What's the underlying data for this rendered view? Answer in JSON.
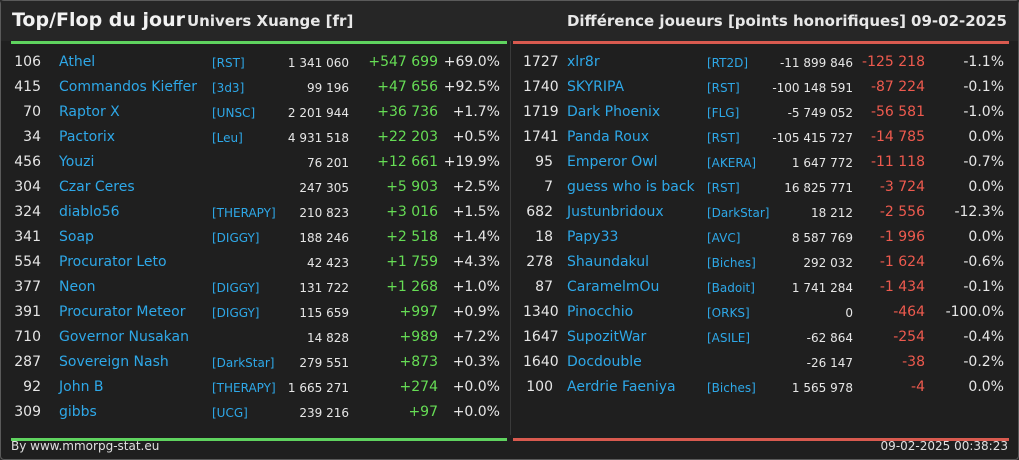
{
  "header": {
    "title": "Top/Flop du jour",
    "universe": "Univers Xuange [fr]",
    "metric": "Différence joueurs [points honorifiques]",
    "date": "09-02-2025"
  },
  "colors": {
    "positive": "#66dd55",
    "negative": "#ee5a4e",
    "name": "#2ea8e8",
    "top_bar": "#5fd35f",
    "flop_bar": "#d95a4f"
  },
  "top": [
    {
      "rank": "106",
      "name": "Athel",
      "tag": "[RST]",
      "score": "1 341 060",
      "diff": "+547 699",
      "pct": "+69.0%"
    },
    {
      "rank": "415",
      "name": "Commandos Kieffer",
      "tag": "[3d3]",
      "score": "99 196",
      "diff": "+47 656",
      "pct": "+92.5%"
    },
    {
      "rank": "70",
      "name": "Raptor X",
      "tag": "[UNSC]",
      "score": "2 201 944",
      "diff": "+36 736",
      "pct": "+1.7%"
    },
    {
      "rank": "34",
      "name": "Pactorix",
      "tag": "[Leu]",
      "score": "4 931 518",
      "diff": "+22 203",
      "pct": "+0.5%"
    },
    {
      "rank": "456",
      "name": "Youzi",
      "tag": "",
      "score": "76 201",
      "diff": "+12 661",
      "pct": "+19.9%"
    },
    {
      "rank": "304",
      "name": "Czar Ceres",
      "tag": "",
      "score": "247 305",
      "diff": "+5 903",
      "pct": "+2.5%"
    },
    {
      "rank": "324",
      "name": "diablo56",
      "tag": "[THERAPY]",
      "score": "210 823",
      "diff": "+3 016",
      "pct": "+1.5%"
    },
    {
      "rank": "341",
      "name": "Soap",
      "tag": "[DIGGY]",
      "score": "188 246",
      "diff": "+2 518",
      "pct": "+1.4%"
    },
    {
      "rank": "554",
      "name": "Procurator Leto",
      "tag": "",
      "score": "42 423",
      "diff": "+1 759",
      "pct": "+4.3%"
    },
    {
      "rank": "377",
      "name": "Neon",
      "tag": "[DIGGY]",
      "score": "131 722",
      "diff": "+1 268",
      "pct": "+1.0%"
    },
    {
      "rank": "391",
      "name": "Procurator Meteor",
      "tag": "[DIGGY]",
      "score": "115 659",
      "diff": "+997",
      "pct": "+0.9%"
    },
    {
      "rank": "710",
      "name": "Governor Nusakan",
      "tag": "",
      "score": "14 828",
      "diff": "+989",
      "pct": "+7.2%"
    },
    {
      "rank": "287",
      "name": "Sovereign Nash",
      "tag": "[DarkStar]",
      "score": "279 551",
      "diff": "+873",
      "pct": "+0.3%"
    },
    {
      "rank": "92",
      "name": "John B",
      "tag": "[THERAPY]",
      "score": "1 665 271",
      "diff": "+274",
      "pct": "+0.0%"
    },
    {
      "rank": "309",
      "name": "gibbs",
      "tag": "[UCG]",
      "score": "239 216",
      "diff": "+97",
      "pct": "+0.0%"
    }
  ],
  "flop": [
    {
      "rank": "1727",
      "name": "xlr8r",
      "tag": "[RT2D]",
      "score": "-11 899 846",
      "diff": "-125 218",
      "pct": "-1.1%"
    },
    {
      "rank": "1740",
      "name": "SKYRIPA",
      "tag": "[RST]",
      "score": "-100 148 591",
      "diff": "-87 224",
      "pct": "-0.1%"
    },
    {
      "rank": "1719",
      "name": "Dark Phoenix",
      "tag": "[FLG]",
      "score": "-5 749 052",
      "diff": "-56 581",
      "pct": "-1.0%"
    },
    {
      "rank": "1741",
      "name": "Panda Roux",
      "tag": "[RST]",
      "score": "-105 415 727",
      "diff": "-14 785",
      "pct": "0.0%"
    },
    {
      "rank": "95",
      "name": "Emperor Owl",
      "tag": "[AKERA]",
      "score": "1 647 772",
      "diff": "-11 118",
      "pct": "-0.7%"
    },
    {
      "rank": "7",
      "name": "guess who is back",
      "tag": "[RST]",
      "score": "16 825 771",
      "diff": "-3 724",
      "pct": "0.0%"
    },
    {
      "rank": "682",
      "name": "Justunbridoux",
      "tag": "[DarkStar]",
      "score": "18 212",
      "diff": "-2 556",
      "pct": "-12.3%"
    },
    {
      "rank": "18",
      "name": "Papy33",
      "tag": "[AVC]",
      "score": "8 587 769",
      "diff": "-1 996",
      "pct": "0.0%"
    },
    {
      "rank": "278",
      "name": "Shaundakul",
      "tag": "[Biches]",
      "score": "292 032",
      "diff": "-1 624",
      "pct": "-0.6%"
    },
    {
      "rank": "87",
      "name": "CaramelmOu",
      "tag": "[Badoit]",
      "score": "1 741 284",
      "diff": "-1 434",
      "pct": "-0.1%"
    },
    {
      "rank": "1340",
      "name": "Pinocchio",
      "tag": "[ORKS]",
      "score": "0",
      "diff": "-464",
      "pct": "-100.0%"
    },
    {
      "rank": "1647",
      "name": "SupozitWar",
      "tag": "[ASILE]",
      "score": "-62 864",
      "diff": "-254",
      "pct": "-0.4%"
    },
    {
      "rank": "1640",
      "name": "Docdouble",
      "tag": "",
      "score": "-26 147",
      "diff": "-38",
      "pct": "-0.2%"
    },
    {
      "rank": "100",
      "name": "Aerdrie Faeniya",
      "tag": "[Biches]",
      "score": "1 565 978",
      "diff": "-4",
      "pct": "0.0%"
    }
  ],
  "footer": {
    "credit": "By www.mmorpg-stat.eu",
    "timestamp": "09-02-2025 00:38:23"
  }
}
